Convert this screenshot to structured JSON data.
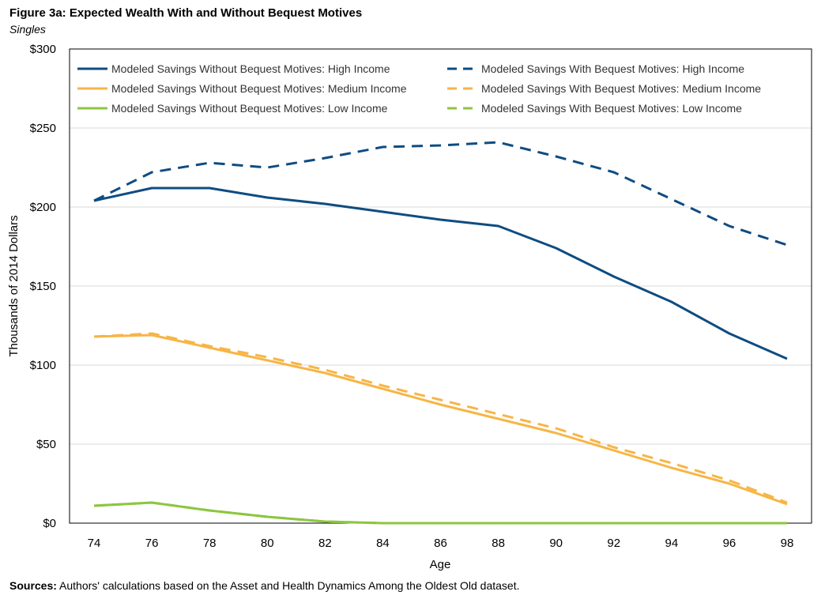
{
  "header": {
    "title": "Figure 3a: Expected Wealth With and Without Bequest Motives",
    "subtitle": "Singles"
  },
  "footer": {
    "sources_label": "Sources:",
    "sources_text": " Authors' calculations based on the Asset and Health Dynamics Among the Oldest Old dataset."
  },
  "chart_data": {
    "type": "line",
    "title": "Figure 3a: Expected Wealth With and Without Bequest Motives",
    "subtitle": "Singles",
    "xlabel": "Age",
    "ylabel": "Thousands of 2014 Dollars",
    "x": [
      74,
      76,
      78,
      80,
      82,
      84,
      86,
      88,
      90,
      92,
      94,
      96,
      98
    ],
    "x_ticks": [
      "74",
      "76",
      "78",
      "80",
      "82",
      "84",
      "86",
      "88",
      "90",
      "92",
      "94",
      "96",
      "98"
    ],
    "ylim": [
      0,
      300
    ],
    "y_ticks": [
      0,
      50,
      100,
      150,
      200,
      250,
      300
    ],
    "y_tick_labels": [
      "$0",
      "$50",
      "$100",
      "$150",
      "$200",
      "$250",
      "$300"
    ],
    "grid": true,
    "legend_position": "top",
    "series": [
      {
        "name": "Modeled Savings Without Bequest Motives: High Income",
        "color": "#0f4c81",
        "dash": "solid",
        "values": [
          204,
          212,
          212,
          206,
          202,
          197,
          192,
          188,
          174,
          156,
          140,
          120,
          104
        ]
      },
      {
        "name": "Modeled Savings With Bequest Motives: High Income",
        "color": "#0f4c81",
        "dash": "dashed",
        "values": [
          204,
          222,
          228,
          225,
          231,
          238,
          239,
          241,
          232,
          222,
          205,
          188,
          176
        ]
      },
      {
        "name": "Modeled Savings Without Bequest Motives: Medium Income",
        "color": "#f7b546",
        "dash": "solid",
        "values": [
          118,
          119,
          111,
          103,
          95,
          85,
          75,
          66,
          57,
          46,
          35,
          25,
          12
        ]
      },
      {
        "name": "Modeled Savings With Bequest Motives: Medium Income",
        "color": "#f7b546",
        "dash": "dashed",
        "values": [
          118,
          120,
          112,
          105,
          97,
          87,
          78,
          69,
          60,
          48,
          38,
          27,
          13
        ]
      },
      {
        "name": "Modeled Savings Without Bequest Motives: Low Income",
        "color": "#8dc63f",
        "dash": "solid",
        "values": [
          11,
          13,
          8,
          4,
          1,
          0,
          0,
          0,
          0,
          0,
          0,
          0,
          0
        ]
      },
      {
        "name": "Modeled Savings With Bequest Motives: Low Income",
        "color": "#8dc63f",
        "dash": "dashed",
        "values": [
          11,
          13,
          8,
          4,
          1,
          0,
          0,
          0,
          0,
          0,
          0,
          0,
          0
        ]
      }
    ]
  }
}
